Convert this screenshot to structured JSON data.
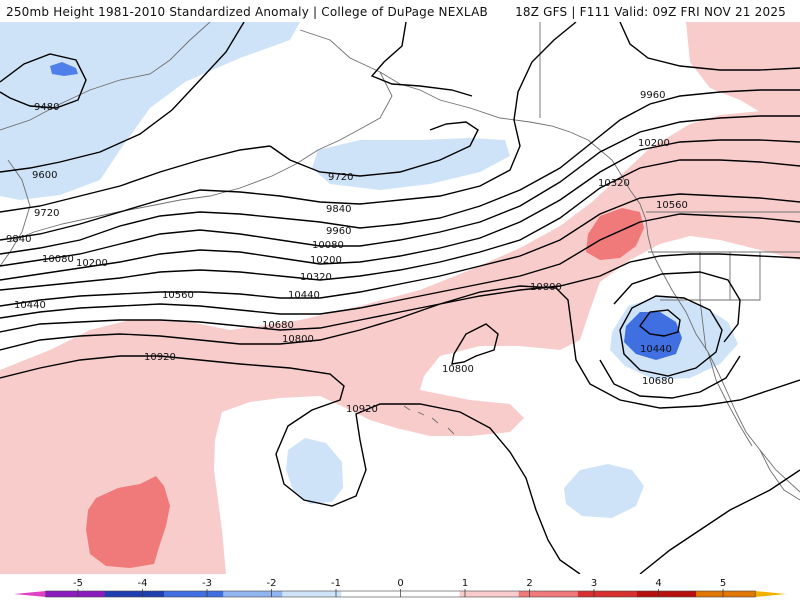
{
  "header": {
    "title": "250mb Height 1981-2010 Standardized Anomaly | College of DuPage NEXLAB",
    "valid": "18Z GFS | F111 Valid: 09Z FRI NOV 21 2025"
  },
  "map": {
    "contour_labels": [
      "9480",
      "9600",
      "9720",
      "9840",
      "10080",
      "10200",
      "10440",
      "9720",
      "9840",
      "9960",
      "10080",
      "10200",
      "10320",
      "10440",
      "10560",
      "10680",
      "10800",
      "10920",
      "10800",
      "10800",
      "10920",
      "9960",
      "10200",
      "10320",
      "10560",
      "10440",
      "10680"
    ]
  },
  "colorbar": {
    "ticks": [
      "-5",
      "-4",
      "-3",
      "-2",
      "-1",
      "0",
      "1",
      "2",
      "3",
      "4",
      "5"
    ],
    "colors": [
      "#e040c8",
      "#8a1cc0",
      "#1f3fb0",
      "#3f6fe0",
      "#8fb4f0",
      "#cfe3f8",
      "#ffffff",
      "#ffffff",
      "#f9cccc",
      "#f07a7a",
      "#d83030",
      "#b80f0f",
      "#e07800",
      "#f4b000"
    ]
  }
}
